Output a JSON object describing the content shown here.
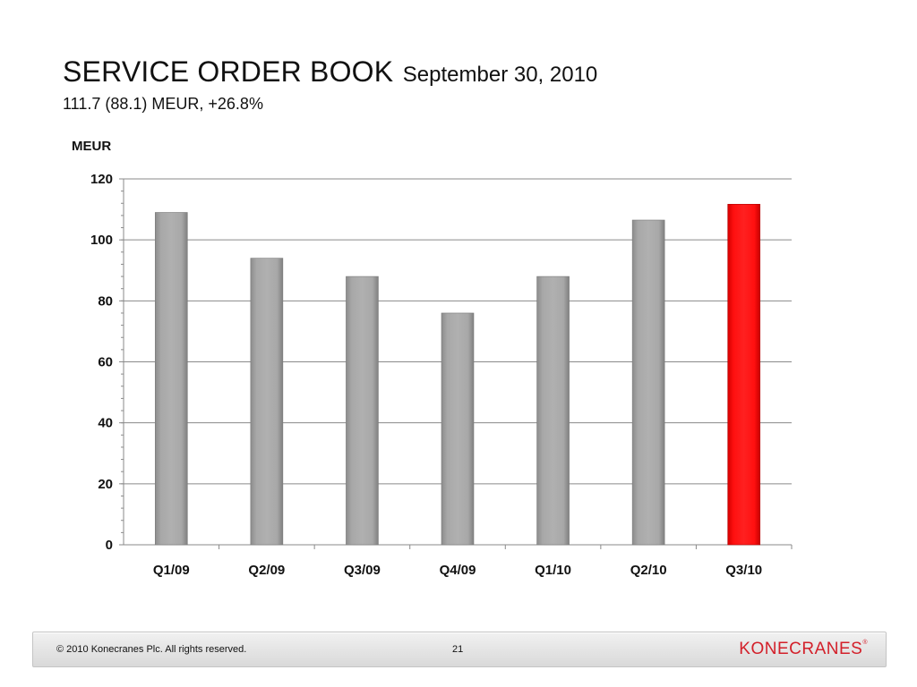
{
  "slide": {
    "title": "SERVICE ORDER BOOK",
    "title_date": "September 30, 2010",
    "subtitle": "111.7 (88.1) MEUR, +26.8%"
  },
  "chart_data": {
    "type": "bar",
    "unit_label": "MEUR",
    "categories": [
      "Q1/09",
      "Q2/09",
      "Q3/09",
      "Q4/09",
      "Q1/10",
      "Q2/10",
      "Q3/10"
    ],
    "values": [
      109,
      94,
      88,
      76,
      88,
      106.5,
      111.7
    ],
    "highlight_index": 6,
    "bar_color": "#a6a6a6",
    "highlight_color": "#ff0000",
    "ylim": [
      0,
      120
    ],
    "yticks": [
      0,
      20,
      40,
      60,
      80,
      100,
      120
    ],
    "grid": true,
    "legend": "none"
  },
  "footer": {
    "copyright": "© 2010 Konecranes Plc. All rights reserved.",
    "page_number": "21",
    "logo_text": "KONECRANES"
  }
}
